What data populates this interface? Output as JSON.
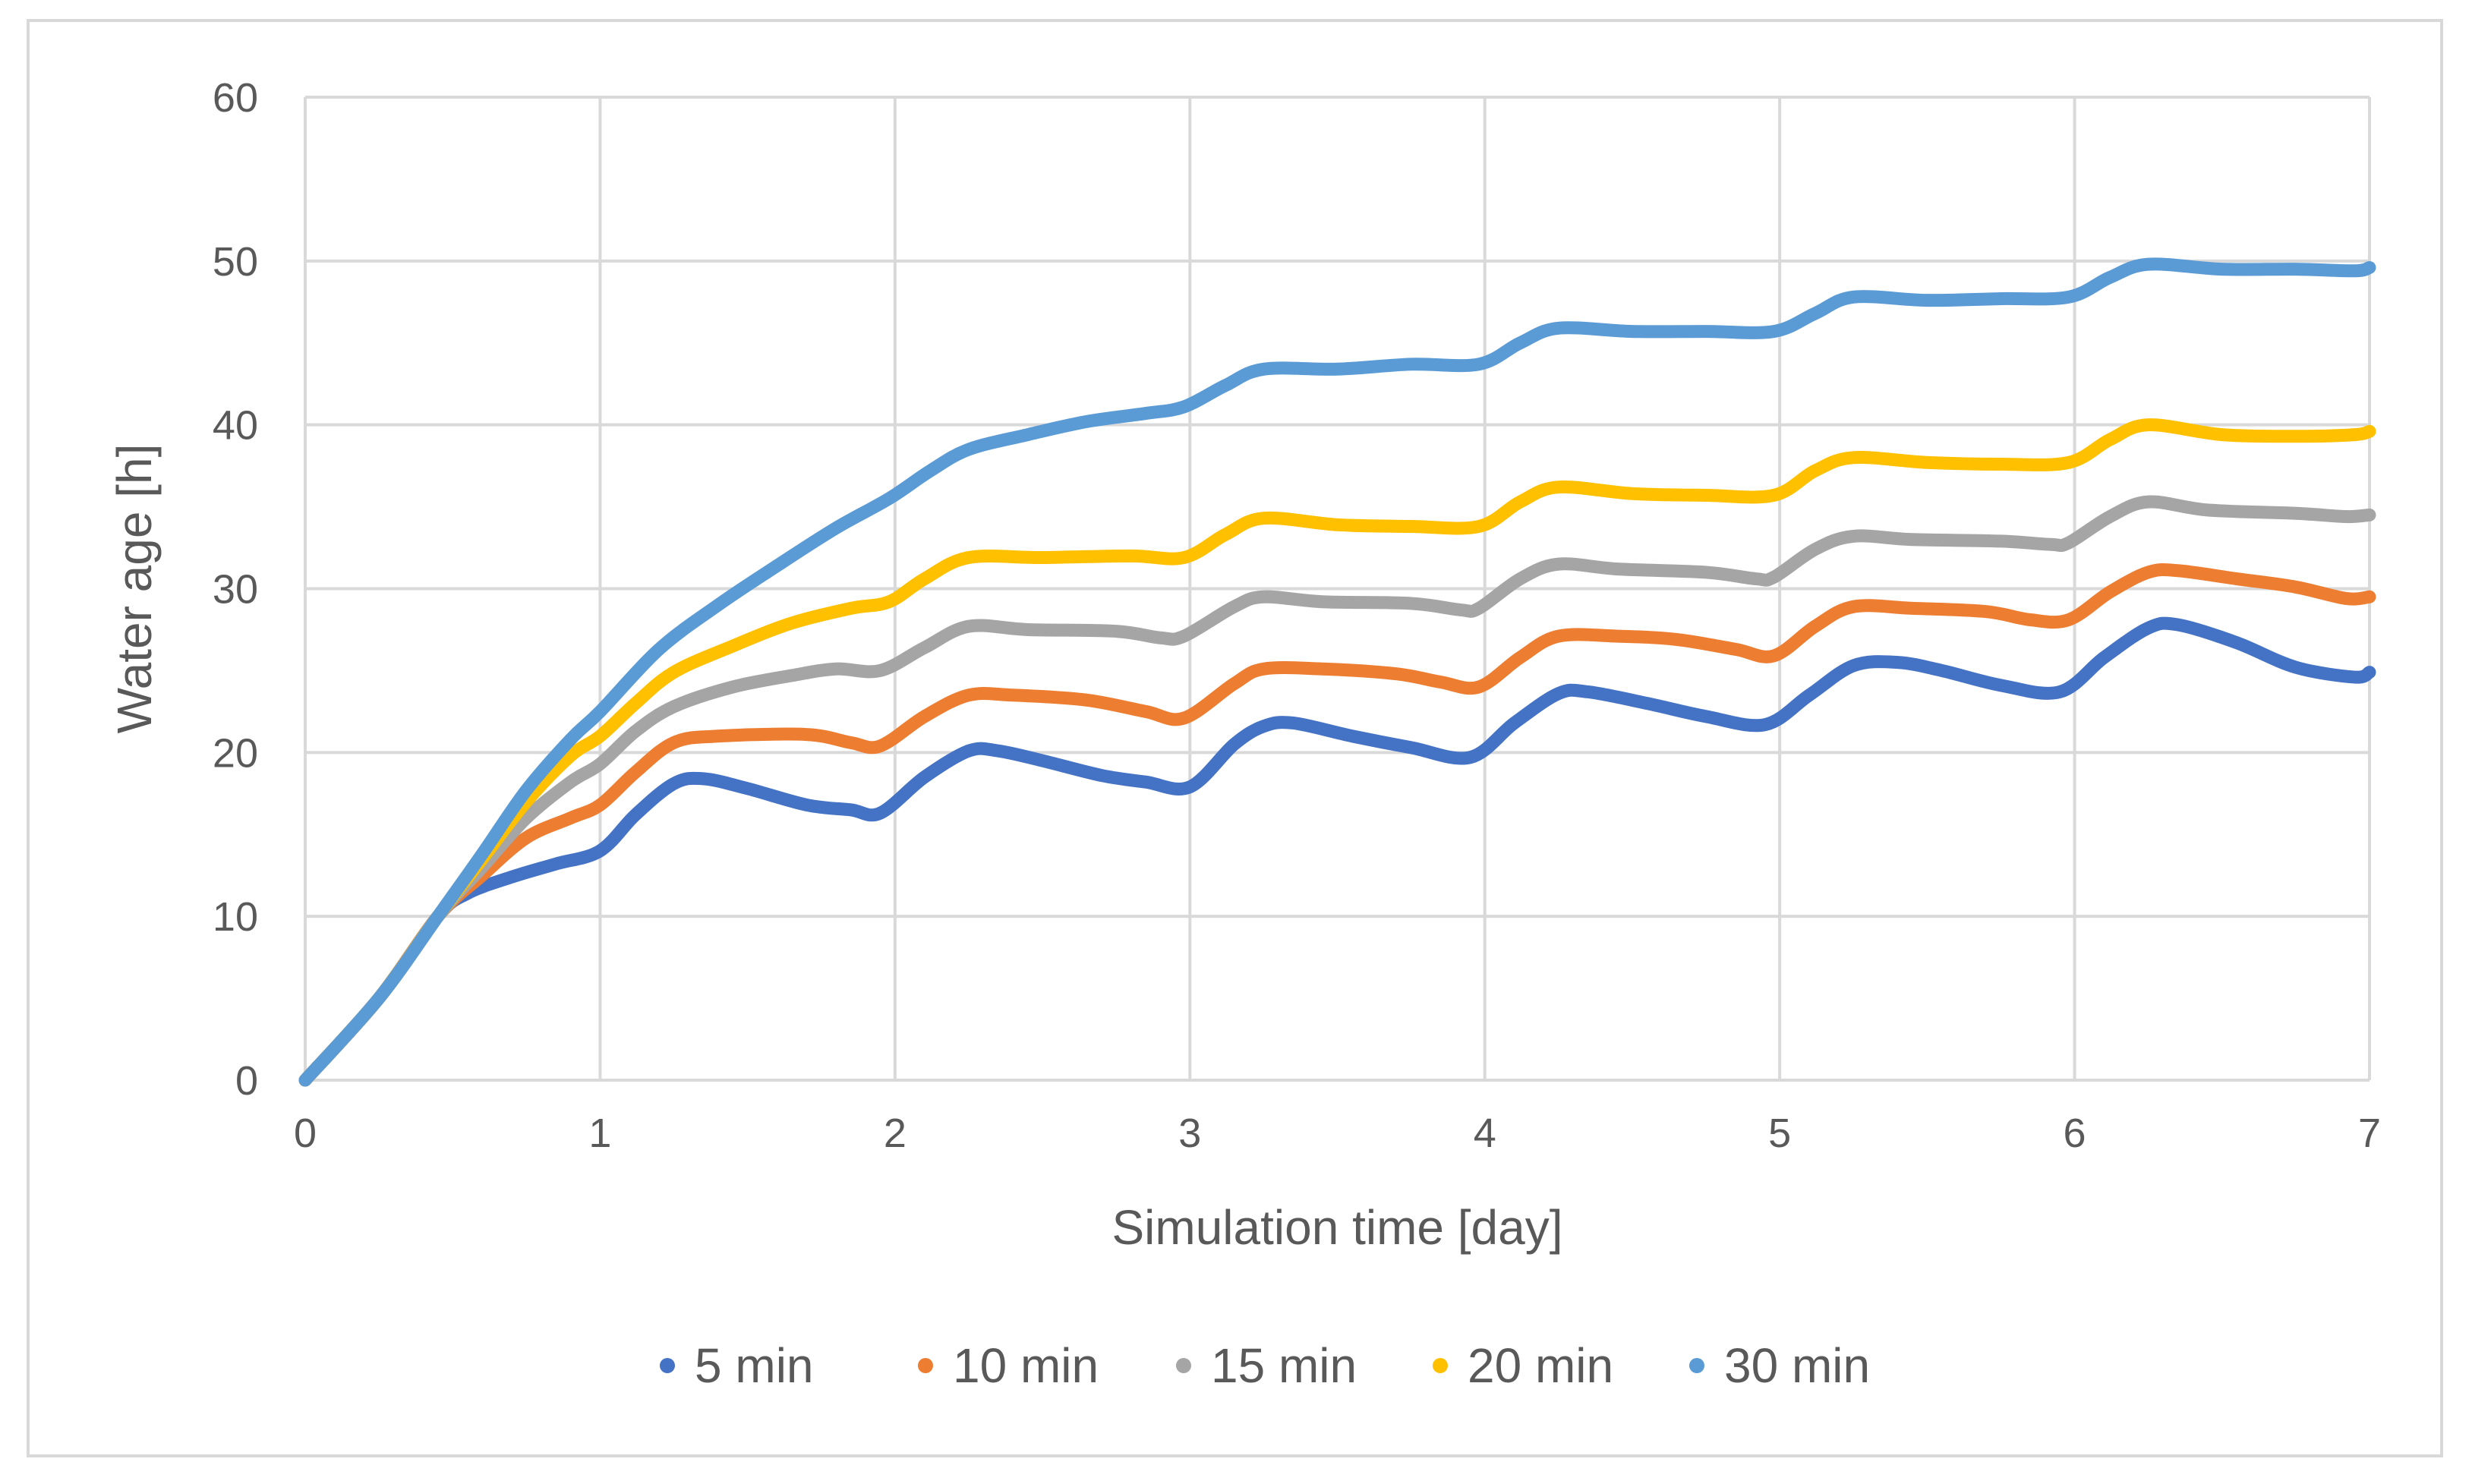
{
  "chart_data": {
    "type": "line",
    "title": "",
    "xlabel": "Simulation time [day]",
    "ylabel": "Water age [h]",
    "xlim": [
      0,
      7
    ],
    "ylim": [
      0,
      60
    ],
    "x_ticks": [
      "0",
      "1",
      "2",
      "3",
      "4",
      "5",
      "6",
      "7"
    ],
    "y_ticks": [
      "0",
      "10",
      "20",
      "30",
      "40",
      "50",
      "60"
    ],
    "grid": true,
    "legend_position": "bottom",
    "series": [
      {
        "name": "5 min",
        "color": "#4472C4",
        "points": [
          [
            0,
            0
          ],
          [
            0.25,
            5
          ],
          [
            0.45,
            10
          ],
          [
            0.55,
            11.4
          ],
          [
            0.7,
            12.4
          ],
          [
            0.85,
            13.2
          ],
          [
            1.0,
            14
          ],
          [
            1.12,
            16.2
          ],
          [
            1.25,
            18.1
          ],
          [
            1.35,
            18.4
          ],
          [
            1.5,
            17.8
          ],
          [
            1.7,
            16.8
          ],
          [
            1.85,
            16.5
          ],
          [
            1.95,
            16.3
          ],
          [
            2.1,
            18.5
          ],
          [
            2.25,
            20.1
          ],
          [
            2.35,
            20.1
          ],
          [
            2.5,
            19.5
          ],
          [
            2.7,
            18.6
          ],
          [
            2.85,
            18.2
          ],
          [
            3.0,
            17.9
          ],
          [
            3.15,
            20.5
          ],
          [
            3.25,
            21.6
          ],
          [
            3.35,
            21.8
          ],
          [
            3.55,
            21
          ],
          [
            3.75,
            20.3
          ],
          [
            3.95,
            19.7
          ],
          [
            4.1,
            21.8
          ],
          [
            4.25,
            23.6
          ],
          [
            4.35,
            23.7
          ],
          [
            4.55,
            23
          ],
          [
            4.75,
            22.2
          ],
          [
            4.95,
            21.7
          ],
          [
            5.1,
            23.5
          ],
          [
            5.25,
            25.3
          ],
          [
            5.4,
            25.5
          ],
          [
            5.55,
            25
          ],
          [
            5.75,
            24.1
          ],
          [
            5.95,
            23.7
          ],
          [
            6.1,
            25.8
          ],
          [
            6.25,
            27.6
          ],
          [
            6.35,
            27.8
          ],
          [
            6.55,
            26.7
          ],
          [
            6.75,
            25.2
          ],
          [
            6.95,
            24.6
          ],
          [
            7.0,
            24.9
          ]
        ]
      },
      {
        "name": "10 min",
        "color": "#ED7D31",
        "points": [
          [
            0,
            0
          ],
          [
            0.25,
            5
          ],
          [
            0.45,
            10
          ],
          [
            0.6,
            12.5
          ],
          [
            0.75,
            14.8
          ],
          [
            0.9,
            16
          ],
          [
            1.0,
            16.8
          ],
          [
            1.12,
            18.8
          ],
          [
            1.25,
            20.6
          ],
          [
            1.4,
            21
          ],
          [
            1.7,
            21.1
          ],
          [
            1.85,
            20.6
          ],
          [
            1.95,
            20.4
          ],
          [
            2.1,
            22.2
          ],
          [
            2.25,
            23.5
          ],
          [
            2.4,
            23.5
          ],
          [
            2.65,
            23.2
          ],
          [
            2.85,
            22.5
          ],
          [
            2.98,
            22.1
          ],
          [
            3.15,
            24.2
          ],
          [
            3.25,
            25.1
          ],
          [
            3.45,
            25.1
          ],
          [
            3.7,
            24.8
          ],
          [
            3.85,
            24.3
          ],
          [
            3.98,
            24
          ],
          [
            4.12,
            25.8
          ],
          [
            4.25,
            27.1
          ],
          [
            4.45,
            27.1
          ],
          [
            4.65,
            26.9
          ],
          [
            4.85,
            26.3
          ],
          [
            4.98,
            25.9
          ],
          [
            5.12,
            27.7
          ],
          [
            5.25,
            28.9
          ],
          [
            5.45,
            28.8
          ],
          [
            5.7,
            28.6
          ],
          [
            5.85,
            28.1
          ],
          [
            5.98,
            28.1
          ],
          [
            6.12,
            29.8
          ],
          [
            6.25,
            31
          ],
          [
            6.35,
            31.1
          ],
          [
            6.55,
            30.6
          ],
          [
            6.75,
            30.1
          ],
          [
            6.92,
            29.4
          ],
          [
            7.0,
            29.5
          ]
        ]
      },
      {
        "name": "15 min",
        "color": "#A5A5A5",
        "points": [
          [
            0,
            0
          ],
          [
            0.25,
            5
          ],
          [
            0.45,
            10
          ],
          [
            0.6,
            13
          ],
          [
            0.75,
            16
          ],
          [
            0.9,
            18.2
          ],
          [
            1.0,
            19.3
          ],
          [
            1.12,
            21.3
          ],
          [
            1.25,
            22.8
          ],
          [
            1.45,
            24
          ],
          [
            1.65,
            24.7
          ],
          [
            1.8,
            25.1
          ],
          [
            1.95,
            25
          ],
          [
            2.1,
            26.4
          ],
          [
            2.25,
            27.7
          ],
          [
            2.45,
            27.5
          ],
          [
            2.75,
            27.4
          ],
          [
            2.9,
            27
          ],
          [
            2.98,
            27.1
          ],
          [
            3.15,
            28.9
          ],
          [
            3.25,
            29.5
          ],
          [
            3.45,
            29.2
          ],
          [
            3.75,
            29.1
          ],
          [
            3.92,
            28.7
          ],
          [
            3.98,
            28.8
          ],
          [
            4.12,
            30.6
          ],
          [
            4.25,
            31.5
          ],
          [
            4.45,
            31.2
          ],
          [
            4.75,
            31
          ],
          [
            4.92,
            30.6
          ],
          [
            4.98,
            30.7
          ],
          [
            5.12,
            32.4
          ],
          [
            5.25,
            33.2
          ],
          [
            5.45,
            33
          ],
          [
            5.75,
            32.9
          ],
          [
            5.92,
            32.7
          ],
          [
            5.98,
            32.8
          ],
          [
            6.12,
            34.4
          ],
          [
            6.25,
            35.3
          ],
          [
            6.45,
            34.8
          ],
          [
            6.75,
            34.6
          ],
          [
            6.92,
            34.4
          ],
          [
            7.0,
            34.5
          ]
        ]
      },
      {
        "name": "20 min",
        "color": "#FFC000",
        "points": [
          [
            0,
            0
          ],
          [
            0.25,
            5
          ],
          [
            0.45,
            10
          ],
          [
            0.6,
            13.5
          ],
          [
            0.75,
            17
          ],
          [
            0.9,
            19.8
          ],
          [
            1.0,
            21
          ],
          [
            1.12,
            23
          ],
          [
            1.25,
            24.9
          ],
          [
            1.45,
            26.5
          ],
          [
            1.65,
            27.9
          ],
          [
            1.85,
            28.8
          ],
          [
            1.98,
            29.2
          ],
          [
            2.1,
            30.6
          ],
          [
            2.25,
            31.9
          ],
          [
            2.5,
            31.9
          ],
          [
            2.8,
            32
          ],
          [
            2.98,
            31.9
          ],
          [
            3.12,
            33.3
          ],
          [
            3.25,
            34.3
          ],
          [
            3.5,
            33.9
          ],
          [
            3.75,
            33.8
          ],
          [
            3.98,
            33.8
          ],
          [
            4.12,
            35.3
          ],
          [
            4.25,
            36.2
          ],
          [
            4.5,
            35.8
          ],
          [
            4.75,
            35.7
          ],
          [
            4.98,
            35.7
          ],
          [
            5.12,
            37.2
          ],
          [
            5.25,
            38
          ],
          [
            5.5,
            37.7
          ],
          [
            5.75,
            37.6
          ],
          [
            5.98,
            37.7
          ],
          [
            6.12,
            39.1
          ],
          [
            6.25,
            40
          ],
          [
            6.5,
            39.4
          ],
          [
            6.75,
            39.3
          ],
          [
            6.95,
            39.4
          ],
          [
            7.0,
            39.6
          ]
        ]
      },
      {
        "name": "30 min",
        "color": "#5B9BD5",
        "points": [
          [
            0,
            0
          ],
          [
            0.25,
            5
          ],
          [
            0.45,
            10
          ],
          [
            0.6,
            13.8
          ],
          [
            0.75,
            17.7
          ],
          [
            0.9,
            20.8
          ],
          [
            1.0,
            22.5
          ],
          [
            1.2,
            26.3
          ],
          [
            1.4,
            29
          ],
          [
            1.6,
            31.4
          ],
          [
            1.8,
            33.7
          ],
          [
            1.98,
            35.5
          ],
          [
            2.12,
            37.2
          ],
          [
            2.25,
            38.5
          ],
          [
            2.45,
            39.4
          ],
          [
            2.65,
            40.2
          ],
          [
            2.85,
            40.7
          ],
          [
            2.98,
            41.1
          ],
          [
            3.12,
            42.4
          ],
          [
            3.25,
            43.4
          ],
          [
            3.5,
            43.4
          ],
          [
            3.75,
            43.7
          ],
          [
            3.98,
            43.7
          ],
          [
            4.12,
            45
          ],
          [
            4.25,
            45.9
          ],
          [
            4.5,
            45.7
          ],
          [
            4.75,
            45.7
          ],
          [
            4.98,
            45.7
          ],
          [
            5.12,
            46.8
          ],
          [
            5.25,
            47.8
          ],
          [
            5.5,
            47.6
          ],
          [
            5.75,
            47.7
          ],
          [
            5.98,
            47.8
          ],
          [
            6.12,
            49
          ],
          [
            6.25,
            49.8
          ],
          [
            6.5,
            49.5
          ],
          [
            6.75,
            49.5
          ],
          [
            6.95,
            49.4
          ],
          [
            7.0,
            49.6
          ]
        ]
      }
    ]
  }
}
